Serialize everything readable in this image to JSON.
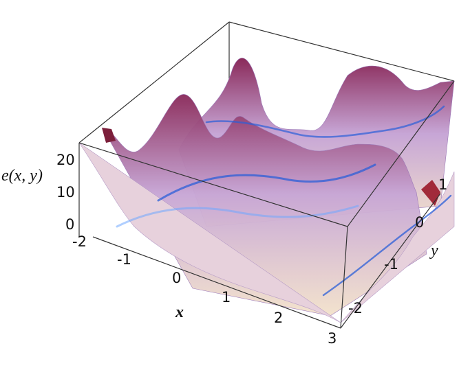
{
  "chart_data": {
    "type": "surface",
    "title": "",
    "xlabel": "x",
    "ylabel": "y",
    "zlabel": "e(x, y)",
    "xlim": [
      -2,
      3
    ],
    "ylim": [
      -2.5,
      1.8
    ],
    "zlim": [
      0,
      25
    ],
    "x_ticks": [
      "-2",
      "-1",
      "0",
      "1",
      "2",
      "3"
    ],
    "y_ticks": [
      "-2",
      "-1",
      "0",
      "1"
    ],
    "z_ticks": [
      "0",
      "10",
      "20"
    ],
    "bounding_box": true,
    "colors": {
      "surface_high": "#8a2a5a",
      "surface_mid": "#c7a6d6",
      "surface_low": "#f1dcc8",
      "valley": "#2b5fd8",
      "box_edge": "#333333"
    }
  }
}
